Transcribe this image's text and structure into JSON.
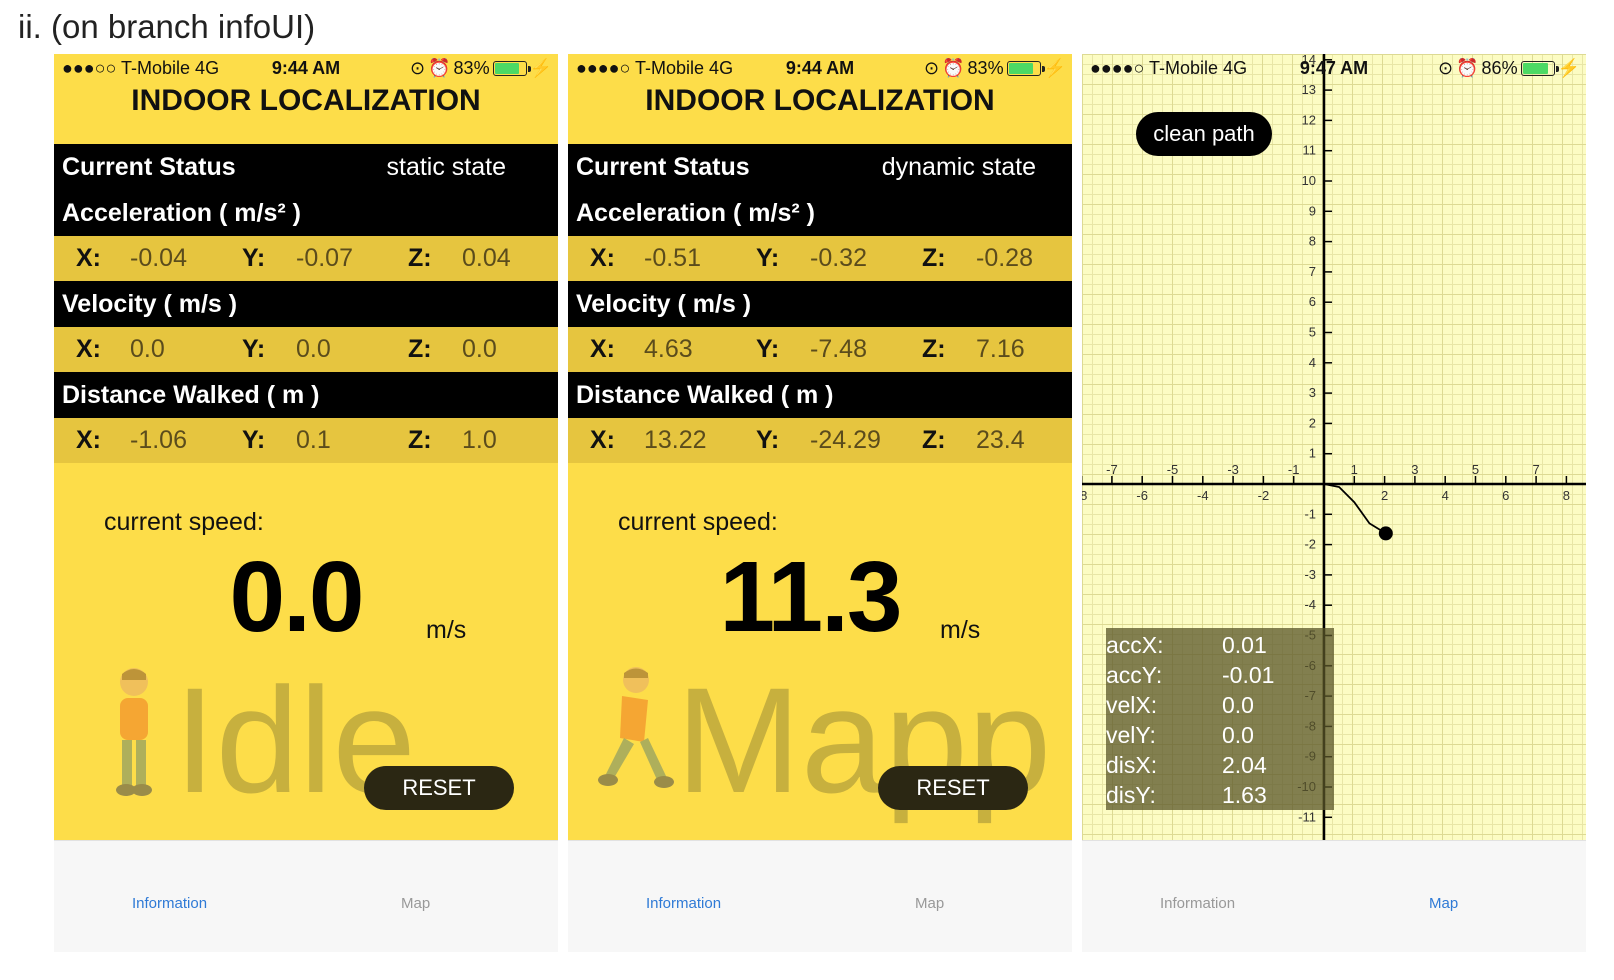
{
  "caption": "ii. (on branch infoUI)",
  "screens": [
    {
      "status": {
        "carrier": "●●●○○ T-Mobile  4G",
        "time": "9:44 AM",
        "battery": "83%",
        "battery_level": 0.83
      },
      "title": "INDOOR LOCALIZATION",
      "current_status_label": "Current Status",
      "current_status_value": "static state",
      "acceleration_label": "Acceleration  ( m/s² )",
      "acceleration": {
        "x": "-0.04",
        "y": "-0.07",
        "z": "0.04"
      },
      "velocity_label": "Velocity  ( m/s )",
      "velocity": {
        "x": "0.0",
        "y": "0.0",
        "z": "0.0"
      },
      "distance_label": "Distance Walked  ( m )",
      "distance": {
        "x": "-1.06",
        "y": "0.1",
        "z": "1.0"
      },
      "speed_label": "current speed:",
      "speed": "0.0",
      "speed_unit": "m/s",
      "watermark": "Idle",
      "reset_label": "RESET",
      "tabs": [
        "Information",
        "Map"
      ],
      "active_tab": "Information"
    },
    {
      "status": {
        "carrier": "●●●●○ T-Mobile  4G",
        "time": "9:44 AM",
        "battery": "83%",
        "battery_level": 0.83
      },
      "title": "INDOOR LOCALIZATION",
      "current_status_label": "Current Status",
      "current_status_value": "dynamic state",
      "acceleration_label": "Acceleration  ( m/s² )",
      "acceleration": {
        "x": "-0.51",
        "y": "-0.32",
        "z": "-0.28"
      },
      "velocity_label": "Velocity  ( m/s )",
      "velocity": {
        "x": "4.63",
        "y": "-7.48",
        "z": "7.16"
      },
      "distance_label": "Distance Walked  ( m )",
      "distance": {
        "x": "13.22",
        "y": "-24.29",
        "z": "23.4"
      },
      "speed_label": "current speed:",
      "speed": "11.3",
      "speed_unit": "m/s",
      "watermark": "Mapp",
      "reset_label": "RESET",
      "tabs": [
        "Information",
        "Map"
      ],
      "active_tab": "Information"
    },
    {
      "status": {
        "carrier": "●●●●○ T-Mobile  4G",
        "time": "9:47 AM",
        "battery": "86%",
        "battery_level": 0.86
      },
      "clean_path_label": "clean path",
      "readout": [
        {
          "k": "accX:",
          "v": "0.01"
        },
        {
          "k": "accY:",
          "v": "-0.01"
        },
        {
          "k": "velX:",
          "v": "0.0"
        },
        {
          "k": "velY:",
          "v": "0.0"
        },
        {
          "k": "disX:",
          "v": "2.04"
        },
        {
          "k": "disY:",
          "v": "1.63"
        }
      ],
      "tabs": [
        "Information",
        "Map"
      ],
      "active_tab": "Map",
      "map": {
        "x_range": [
          -8,
          8
        ],
        "y_range": [
          -11,
          14
        ],
        "path": [
          [
            0,
            0
          ],
          [
            0.5,
            -0.1
          ],
          [
            1.0,
            -0.6
          ],
          [
            1.5,
            -1.3
          ],
          [
            2.04,
            -1.63
          ]
        ],
        "current_position": [
          2.04,
          -1.63
        ]
      }
    }
  ]
}
